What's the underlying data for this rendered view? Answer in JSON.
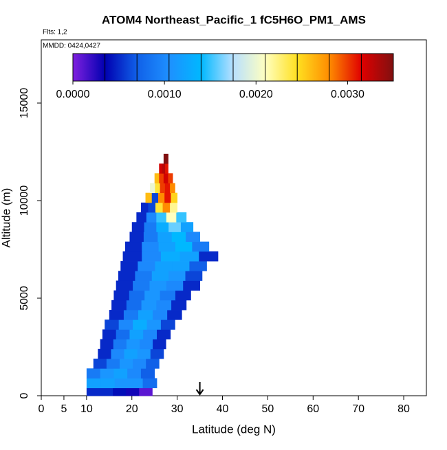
{
  "chart_data": {
    "type": "curtain",
    "title": "ATOM4 Northeast_Pacific_1 fC5H6O_PM1_AMS",
    "annotations": [
      "Flts: 1,2",
      "MMDD: 0424,0427"
    ],
    "xlabel": "Latitude (deg N)",
    "ylabel": "Altitude (m)",
    "xlim": [
      0,
      85
    ],
    "xticks": [
      0,
      5,
      10,
      20,
      30,
      40,
      50,
      60,
      70,
      80
    ],
    "ylim": [
      0,
      18240
    ],
    "yticks": [
      0,
      5000,
      10000,
      15000
    ],
    "arrow_lat": 35,
    "colorbar": {
      "lim": [
        0,
        0.0035
      ],
      "ticks": [
        {
          "value": 0,
          "label": "0.0000"
        },
        {
          "value": 0.001,
          "label": "0.0010"
        },
        {
          "value": 0.002,
          "label": "0.0020"
        },
        {
          "value": 0.003,
          "label": "0.0030"
        }
      ],
      "colors": [
        "#8020e0",
        "#0000b0",
        "#1060e8",
        "#1e90ff",
        "#00b8ff",
        "#b8e0ff",
        "#ffffc0",
        "#ffe020",
        "#ff8c00",
        "#e00000",
        "#801010"
      ]
    },
    "rows": [
      {
        "alt": [
          0,
          400
        ],
        "lat": [
          10,
          24.5
        ],
        "values": [
          0.0005,
          0.0005,
          0.0004,
          0.0003,
          0.0001
        ]
      },
      {
        "alt": [
          400,
          900
        ],
        "lat": [
          10,
          25.5
        ],
        "values": [
          0.0012,
          0.0012,
          0.0011,
          0.0011,
          0.0008
        ]
      },
      {
        "alt": [
          900,
          1400
        ],
        "lat": [
          10,
          25
        ],
        "values": [
          0.0009,
          0.0011,
          0.0012,
          0.001,
          0.0007
        ]
      },
      {
        "alt": [
          1400,
          1900
        ],
        "lat": [
          11.5,
          26
        ],
        "values": [
          0.0006,
          0.0009,
          0.0011,
          0.001,
          0.0007
        ]
      },
      {
        "alt": [
          1900,
          2400
        ],
        "lat": [
          12.5,
          27
        ],
        "values": [
          0.0005,
          0.001,
          0.0012,
          0.0011,
          0.0006
        ]
      },
      {
        "alt": [
          2400,
          2900
        ],
        "lat": [
          13,
          27.5
        ],
        "values": [
          0.0005,
          0.0009,
          0.0011,
          0.001,
          0.0005
        ]
      },
      {
        "alt": [
          2900,
          3400
        ],
        "lat": [
          13.5,
          28.5
        ],
        "values": [
          0.0005,
          0.0008,
          0.0012,
          0.001,
          0.0005
        ]
      },
      {
        "alt": [
          3400,
          3900
        ],
        "lat": [
          14,
          29.5
        ],
        "values": [
          0.0006,
          0.001,
          0.0013,
          0.0011,
          0.0006
        ]
      },
      {
        "alt": [
          3900,
          4400
        ],
        "lat": [
          15,
          31
        ],
        "values": [
          0.0005,
          0.0009,
          0.0012,
          0.001,
          0.0005
        ]
      },
      {
        "alt": [
          4400,
          4900
        ],
        "lat": [
          15.5,
          32
        ],
        "values": [
          0.0005,
          0.0008,
          0.0011,
          0.001,
          0.0005
        ]
      },
      {
        "alt": [
          4900,
          5400
        ],
        "lat": [
          16,
          33
        ],
        "values": [
          0.0005,
          0.0008,
          0.0011,
          0.0009,
          0.0005
        ]
      },
      {
        "alt": [
          5400,
          5900
        ],
        "lat": [
          16.5,
          35
        ],
        "values": [
          0.0005,
          0.0009,
          0.0011,
          0.001,
          0.0005
        ]
      },
      {
        "alt": [
          5900,
          6400
        ],
        "lat": [
          17,
          35.5
        ],
        "values": [
          0.0005,
          0.0009,
          0.0012,
          0.0011,
          0.0006
        ]
      },
      {
        "alt": [
          6400,
          6900
        ],
        "lat": [
          17.5,
          36.5
        ],
        "values": [
          0.0005,
          0.001,
          0.0012,
          0.0012,
          0.0007
        ]
      },
      {
        "alt": [
          6900,
          7400
        ],
        "lat": [
          18,
          39
        ],
        "values": [
          0.0005,
          0.001,
          0.0013,
          0.0012,
          0.0005
        ]
      },
      {
        "alt": [
          7400,
          7900
        ],
        "lat": [
          18.5,
          37
        ],
        "values": [
          0.0005,
          0.001,
          0.0012,
          0.0014,
          0.0009
        ]
      },
      {
        "alt": [
          7900,
          8400
        ],
        "lat": [
          19.5,
          35
        ],
        "values": [
          0.0005,
          0.0009,
          0.0012,
          0.0014,
          0.001
        ]
      },
      {
        "alt": [
          8400,
          8900
        ],
        "lat": [
          20,
          33.5
        ],
        "values": [
          0.0005,
          0.0009,
          0.0013,
          0.0016,
          0.0012
        ]
      },
      {
        "alt": [
          8900,
          9400
        ],
        "lat": [
          21,
          32
        ],
        "values": [
          0.0005,
          0.001,
          0.0015,
          0.0021,
          0.0015
        ]
      },
      {
        "alt": [
          9400,
          9900
        ],
        "lat": [
          22,
          30
        ],
        "values": [
          0.0005,
          0.0006,
          0.0024,
          0.0028,
          0.0022
        ]
      },
      {
        "alt": [
          9900,
          10400
        ],
        "lat": [
          23,
          30
        ],
        "values": [
          0.0026,
          0.0006,
          0.0028,
          0.0031,
          0.0025
        ]
      },
      {
        "alt": [
          10400,
          10900
        ],
        "lat": [
          24,
          29.5
        ],
        "values": [
          0.002,
          0.0024,
          0.003,
          0.0031,
          0.0028
        ]
      },
      {
        "alt": [
          10900,
          11400
        ],
        "lat": [
          25,
          29
        ],
        "values": [
          0.0026,
          0.003,
          0.0032,
          0.003
        ]
      },
      {
        "alt": [
          11400,
          11900
        ],
        "lat": [
          26,
          28
        ],
        "values": [
          0.0032,
          0.0033,
          0.0031
        ]
      },
      {
        "alt": [
          11900,
          12400
        ],
        "lat": [
          27,
          28
        ],
        "values": [
          0.0035
        ]
      }
    ]
  }
}
